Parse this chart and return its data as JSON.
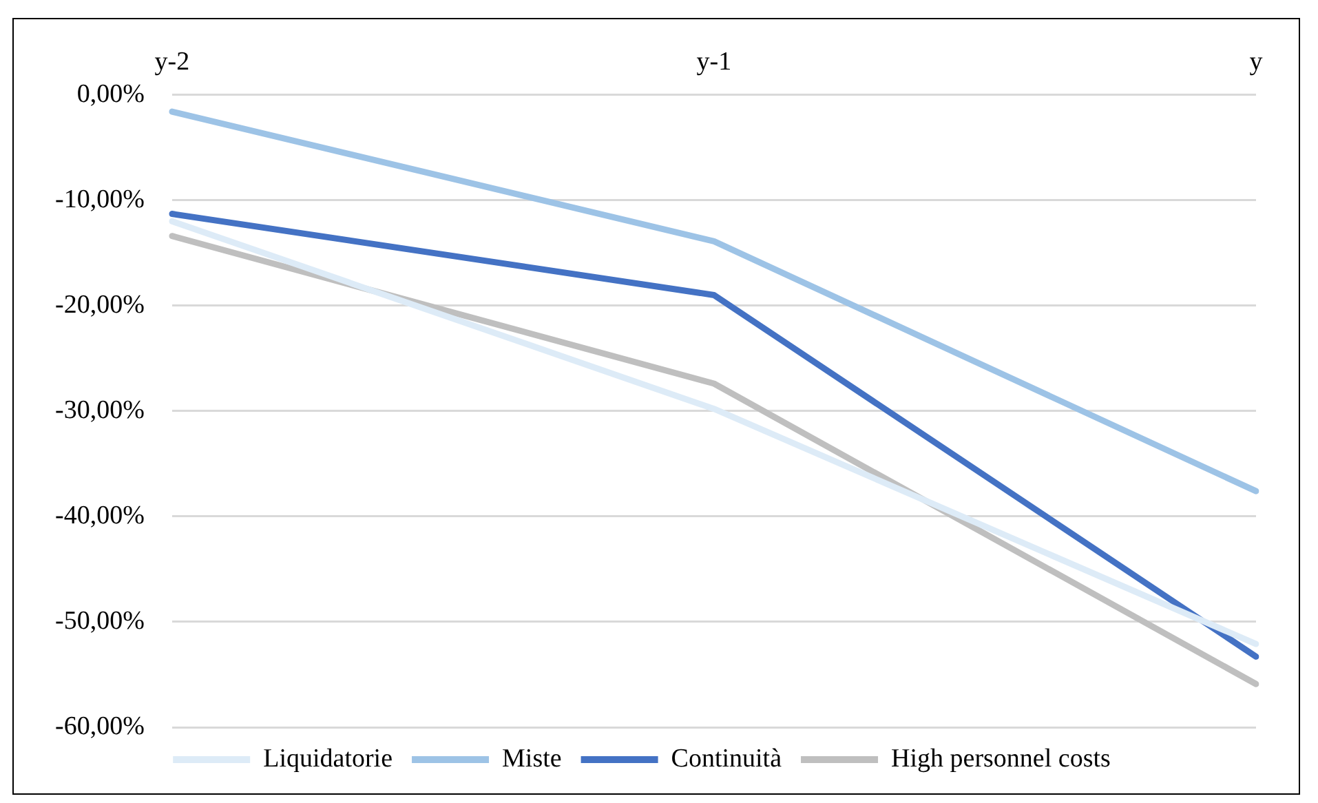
{
  "chart_data": {
    "type": "line",
    "categories": [
      "y-2",
      "y-1",
      "y"
    ],
    "series": [
      {
        "name": "Liquidatorie",
        "color": "#ddebf7",
        "values": [
          -12.0,
          -29.8,
          -52.1
        ]
      },
      {
        "name": "Miste",
        "color": "#9dc3e6",
        "values": [
          -1.6,
          -13.9,
          -37.6
        ]
      },
      {
        "name": "Continuità",
        "color": "#4472c4",
        "values": [
          -11.3,
          -19.0,
          -53.3
        ]
      },
      {
        "name": "High personnel costs",
        "color": "#bfbfbf",
        "values": [
          -13.4,
          -27.4,
          -55.9
        ]
      }
    ],
    "ylim": [
      -60,
      0
    ],
    "yticks": [
      {
        "value": 0,
        "label": "0,00%"
      },
      {
        "value": -10,
        "label": "-10,00%"
      },
      {
        "value": -20,
        "label": "-20,00%"
      },
      {
        "value": -30,
        "label": "-30,00%"
      },
      {
        "value": -40,
        "label": "-40,00%"
      },
      {
        "value": -50,
        "label": "-50,00%"
      },
      {
        "value": -60,
        "label": "-60,00%"
      }
    ],
    "grid": "y",
    "legend": "bottom",
    "marker": "none",
    "line_style": "solid"
  }
}
